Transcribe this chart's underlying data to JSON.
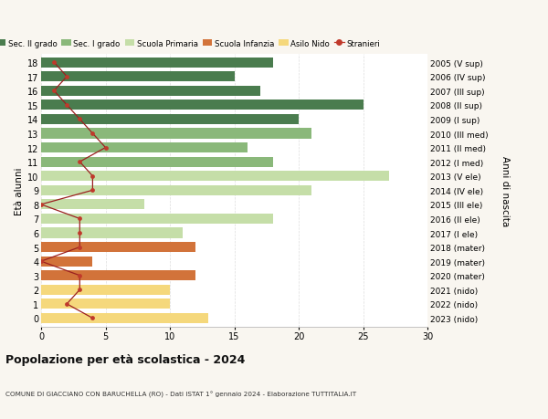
{
  "ages": [
    18,
    17,
    16,
    15,
    14,
    13,
    12,
    11,
    10,
    9,
    8,
    7,
    6,
    5,
    4,
    3,
    2,
    1,
    0
  ],
  "years": [
    "2005 (V sup)",
    "2006 (IV sup)",
    "2007 (III sup)",
    "2008 (II sup)",
    "2009 (I sup)",
    "2010 (III med)",
    "2011 (II med)",
    "2012 (I med)",
    "2013 (V ele)",
    "2014 (IV ele)",
    "2015 (III ele)",
    "2016 (II ele)",
    "2017 (I ele)",
    "2018 (mater)",
    "2019 (mater)",
    "2020 (mater)",
    "2021 (nido)",
    "2022 (nido)",
    "2023 (nido)"
  ],
  "bar_values": [
    18,
    15,
    17,
    25,
    20,
    21,
    16,
    18,
    27,
    21,
    8,
    18,
    11,
    12,
    4,
    12,
    10,
    10,
    13
  ],
  "bar_colors": [
    "#4a7c4e",
    "#4a7c4e",
    "#4a7c4e",
    "#4a7c4e",
    "#4a7c4e",
    "#8ab87a",
    "#8ab87a",
    "#8ab87a",
    "#c5dea8",
    "#c5dea8",
    "#c5dea8",
    "#c5dea8",
    "#c5dea8",
    "#d2733a",
    "#d2733a",
    "#d2733a",
    "#f5d87c",
    "#f5d87c",
    "#f5d87c"
  ],
  "stranieri_values": [
    1,
    2,
    1,
    2,
    3,
    4,
    5,
    3,
    4,
    4,
    0,
    3,
    3,
    3,
    0,
    3,
    3,
    2,
    4
  ],
  "legend_labels": [
    "Sec. II grado",
    "Sec. I grado",
    "Scuola Primaria",
    "Scuola Infanzia",
    "Asilo Nido",
    "Stranieri"
  ],
  "legend_colors": [
    "#4a7c4e",
    "#8ab87a",
    "#c5dea8",
    "#d2733a",
    "#f5d87c",
    "#c0392b"
  ],
  "ylabel_left": "Età alunni",
  "ylabel_right": "Anni di nascita",
  "title": "Popolazione per età scolastica - 2024",
  "subtitle": "COMUNE DI GIACCIANO CON BARUCHELLA (RO) - Dati ISTAT 1° gennaio 2024 - Elaborazione TUTTITALIA.IT",
  "xlim": [
    0,
    30
  ],
  "xticks": [
    0,
    5,
    10,
    15,
    20,
    25,
    30
  ],
  "bg_color": "#f9f6f0",
  "plot_bg_color": "#ffffff",
  "stranieri_line_color": "#9b2020",
  "stranieri_dot_color": "#c0392b",
  "grid_color": "#dddddd",
  "bar_height": 0.72
}
